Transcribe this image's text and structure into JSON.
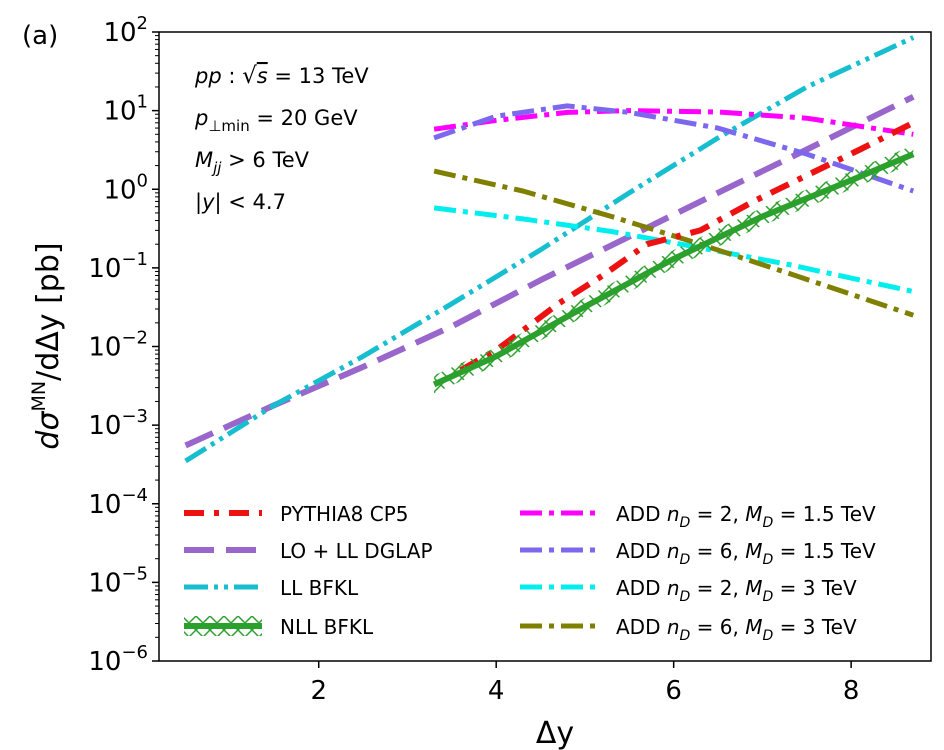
{
  "chart_data": {
    "type": "line",
    "panel_label": "(a)",
    "xlabel": "Δy",
    "ylabel": {
      "prefix": "dσ",
      "sup": "MN",
      "suffix": "/dΔy  [pb]"
    },
    "xlim": [
      0.2,
      8.9
    ],
    "ylim": [
      1e-06,
      100
    ],
    "yscale": "log",
    "grid": false,
    "legend_placement": "lower-center",
    "x_ticks": [
      2,
      4,
      6,
      8
    ],
    "y_ticks": [
      {
        "value": 100,
        "base": "10",
        "exp": "2"
      },
      {
        "value": 10,
        "base": "10",
        "exp": "1"
      },
      {
        "value": 1,
        "base": "10",
        "exp": "0"
      },
      {
        "value": 0.1,
        "base": "10",
        "exp": "−1"
      },
      {
        "value": 0.01,
        "base": "10",
        "exp": "−2"
      },
      {
        "value": 0.001,
        "base": "10",
        "exp": "−3"
      },
      {
        "value": 0.0001,
        "base": "10",
        "exp": "−4"
      },
      {
        "value": 1e-05,
        "base": "10",
        "exp": "−5"
      },
      {
        "value": 1e-06,
        "base": "10",
        "exp": "−6"
      }
    ],
    "annotations": [
      "pp :  √s = 13 TeV",
      "p⊥min = 20 GeV",
      "Mjj > 6 TeV",
      "|y| < 4.7"
    ],
    "series": [
      {
        "name": "PYTHIA8 CP5",
        "color": "#ee1111",
        "style": "dashdot-thick",
        "x": [
          3.6,
          4.0,
          4.3,
          4.7,
          5.2,
          5.7,
          6.3,
          6.9,
          7.5,
          8.1,
          8.7
        ],
        "y": [
          0.005,
          0.009,
          0.016,
          0.035,
          0.08,
          0.2,
          0.3,
          0.7,
          1.5,
          3.2,
          7.0
        ]
      },
      {
        "name": "LO + LL DGLAP",
        "color": "#9966cc",
        "style": "dashed",
        "x": [
          0.5,
          1.5,
          2.5,
          3.5,
          4.5,
          5.5,
          6.5,
          7.5,
          8.7
        ],
        "y": [
          0.00055,
          0.0018,
          0.0055,
          0.018,
          0.07,
          0.25,
          0.9,
          3.2,
          15
        ]
      },
      {
        "name": "LL BFKL",
        "color": "#17becf",
        "style": "dashdotdot",
        "x": [
          0.5,
          1.5,
          2.5,
          3.5,
          4.5,
          5.5,
          6.5,
          7.5,
          8.7
        ],
        "y": [
          0.00035,
          0.0018,
          0.0075,
          0.035,
          0.17,
          0.9,
          4.5,
          20,
          85
        ]
      },
      {
        "name": "NLL BFKL",
        "color": "#2ca02c",
        "style": "solid-band",
        "x": [
          3.3,
          4.0,
          5.0,
          6.0,
          7.0,
          8.0,
          8.7
        ],
        "y": [
          0.0033,
          0.0075,
          0.032,
          0.13,
          0.45,
          1.3,
          2.8
        ]
      },
      {
        "name": "ADD nD = 2,  MD = 1.5 TeV",
        "label_parts": [
          "ADD ",
          "n",
          "D",
          " = 2,  ",
          "M",
          "D",
          " = 1.5 TeV"
        ],
        "color": "#ff00ff",
        "style": "dashdot",
        "x": [
          3.3,
          4.0,
          4.8,
          5.5,
          6.5,
          7.5,
          8.7
        ],
        "y": [
          5.8,
          7.5,
          9.5,
          10.0,
          9.6,
          8.0,
          5.0
        ]
      },
      {
        "name": "ADD nD = 6,  MD = 1.5 TeV",
        "label_parts": [
          "ADD ",
          "n",
          "D",
          " = 6,  ",
          "M",
          "D",
          " = 1.5 TeV"
        ],
        "color": "#7b68ee",
        "style": "dashdot",
        "x": [
          3.3,
          4.0,
          4.8,
          5.5,
          6.5,
          7.5,
          8.7
        ],
        "y": [
          4.5,
          8.5,
          11.5,
          9.5,
          6.0,
          2.8,
          0.95
        ]
      },
      {
        "name": "ADD nD = 2,  MD = 3 TeV",
        "label_parts": [
          "ADD ",
          "n",
          "D",
          " = 2,  ",
          "M",
          "D",
          " = 3 TeV"
        ],
        "color": "#00eeee",
        "style": "dashdot",
        "x": [
          3.3,
          4.3,
          5.3,
          6.3,
          7.3,
          8.7
        ],
        "y": [
          0.58,
          0.42,
          0.29,
          0.18,
          0.11,
          0.05
        ]
      },
      {
        "name": "ADD nD = 6,  MD = 3 TeV",
        "label_parts": [
          "ADD ",
          "n",
          "D",
          " = 6,  ",
          "M",
          "D",
          " = 3 TeV"
        ],
        "color": "#808000",
        "style": "dashdot",
        "x": [
          3.3,
          4.3,
          5.3,
          6.3,
          7.3,
          8.7
        ],
        "y": [
          1.7,
          0.95,
          0.45,
          0.2,
          0.085,
          0.025
        ]
      }
    ]
  }
}
